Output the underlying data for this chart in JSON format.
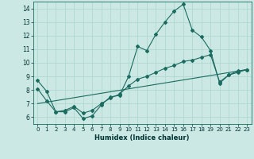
{
  "xlabel": "Humidex (Indice chaleur)",
  "ylabel": "",
  "bg_color": "#cce8e4",
  "grid_color": "#b0d8d2",
  "line_color": "#1a6b60",
  "xlim": [
    -0.5,
    23.5
  ],
  "ylim": [
    5.5,
    14.5
  ],
  "yticks": [
    6,
    7,
    8,
    9,
    10,
    11,
    12,
    13,
    14
  ],
  "xticks": [
    0,
    1,
    2,
    3,
    4,
    5,
    6,
    7,
    8,
    9,
    10,
    11,
    12,
    13,
    14,
    15,
    16,
    17,
    18,
    19,
    20,
    21,
    22,
    23
  ],
  "series1_x": [
    0,
    1,
    2,
    3,
    4,
    5,
    6,
    7,
    8,
    9,
    10,
    11,
    12,
    13,
    14,
    15,
    16,
    17,
    18,
    19,
    20,
    21,
    22,
    23
  ],
  "series1_y": [
    8.7,
    7.9,
    6.4,
    6.4,
    6.7,
    5.9,
    6.1,
    6.9,
    7.5,
    7.6,
    9.0,
    11.2,
    10.9,
    12.1,
    13.0,
    13.8,
    14.3,
    12.4,
    11.9,
    10.9,
    8.5,
    9.1,
    9.4,
    9.5
  ],
  "series2_x": [
    0,
    1,
    2,
    3,
    4,
    5,
    6,
    7,
    8,
    9,
    10,
    11,
    12,
    13,
    14,
    15,
    16,
    17,
    18,
    19,
    20,
    21,
    22,
    23
  ],
  "series2_y": [
    8.1,
    7.2,
    6.4,
    6.5,
    6.8,
    6.3,
    6.5,
    7.0,
    7.4,
    7.7,
    8.3,
    8.8,
    9.0,
    9.3,
    9.6,
    9.8,
    10.1,
    10.2,
    10.4,
    10.6,
    8.6,
    9.1,
    9.3,
    9.5
  ],
  "series3_x": [
    0,
    23
  ],
  "series3_y": [
    7.0,
    9.5
  ]
}
